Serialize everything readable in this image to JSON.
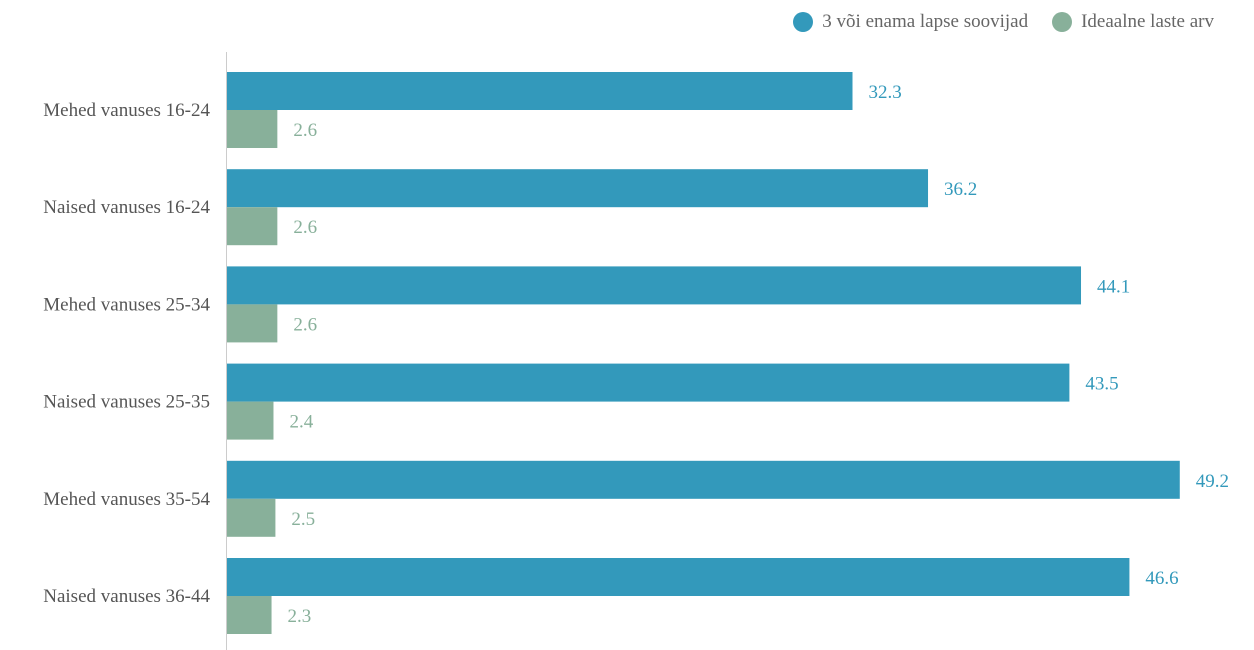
{
  "chart_data": {
    "type": "bar",
    "orientation": "horizontal",
    "categories": [
      "Mehed vanuses 16-24",
      "Naised vanuses 16-24",
      "Mehed vanuses 25-34",
      "Naised vanuses 25-35",
      "Mehed vanuses 35-54",
      "Naised vanuses 36-44"
    ],
    "series": [
      {
        "name": "3 või enama lapse soovijad",
        "color": "#3399bb",
        "values": [
          32.3,
          36.2,
          44.1,
          43.5,
          49.2,
          46.6
        ]
      },
      {
        "name": "Ideaalne laste arv",
        "color": "#88b09a",
        "values": [
          2.6,
          2.6,
          2.6,
          2.4,
          2.5,
          2.3
        ]
      }
    ],
    "title": "",
    "xlabel": "",
    "ylabel": "",
    "xlim": [
      0,
      52
    ],
    "grid": false,
    "legend_position": "top-right",
    "value_labels": true
  }
}
